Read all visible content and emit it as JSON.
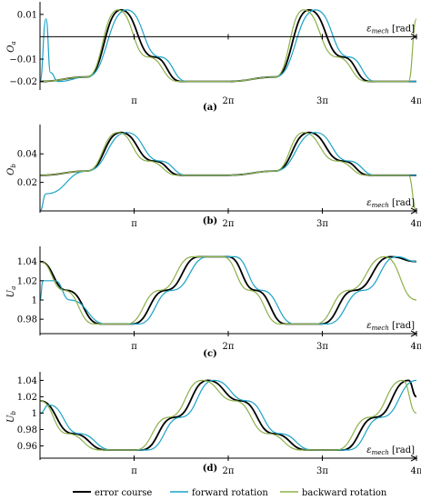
{
  "colors": {
    "error_course": "#000000",
    "forward_rotation": "#1ba3c6",
    "backward_rotation": "#8db04a"
  },
  "legend": {
    "placement": "bottom",
    "entries": [
      "error course",
      "forward rotation",
      "backward rotation"
    ]
  },
  "chart_data": [
    {
      "type": "line",
      "caption": "(a)",
      "ylabel": "O_a",
      "xlabel": "ε_mech [rad]",
      "xlim": [
        0,
        12.566
      ],
      "ylim": [
        -0.023,
        0.014
      ],
      "x_axis_at": 0,
      "xticks": [
        3.1416,
        6.2832,
        9.4248,
        12.566
      ],
      "xtick_labels": [
        "π",
        "2π",
        "3π",
        "4π"
      ],
      "yticks": [
        0.01,
        -0.01,
        -0.02
      ],
      "ytick_labels": [
        "0.01",
        "−0.01",
        "−0.02"
      ],
      "series": [
        {
          "name": "error course",
          "x": [
            0.0,
            1.571,
            2.7,
            3.8,
            4.7,
            6.2832,
            7.854,
            8.98,
            10.1,
            11.0,
            12.566
          ],
          "y": [
            -0.02,
            -0.018,
            0.012,
            -0.009,
            -0.02,
            -0.02,
            -0.018,
            0.012,
            -0.009,
            -0.02,
            -0.02
          ]
        },
        {
          "name": "forward rotation",
          "x": [
            0.0,
            0.2,
            0.35,
            0.6,
            1.571,
            2.9,
            4.0,
            4.9,
            6.2832,
            7.854,
            9.2,
            10.3,
            11.2,
            12.566
          ],
          "y": [
            -0.02,
            0.008,
            -0.016,
            -0.02,
            -0.018,
            0.012,
            -0.009,
            -0.02,
            -0.02,
            -0.018,
            0.012,
            -0.009,
            -0.02,
            -0.02
          ]
        },
        {
          "name": "backward rotation",
          "x": [
            0.0,
            1.571,
            2.6,
            3.6,
            4.6,
            6.2832,
            7.854,
            8.8,
            9.9,
            10.9,
            12.3,
            12.566
          ],
          "y": [
            -0.02,
            -0.018,
            0.012,
            -0.009,
            -0.02,
            -0.02,
            -0.018,
            0.012,
            -0.009,
            -0.02,
            -0.02,
            0.008
          ]
        }
      ]
    },
    {
      "type": "line",
      "caption": "(b)",
      "ylabel": "O_b",
      "xlabel": "ε_mech [rad]",
      "xlim": [
        0,
        12.566
      ],
      "ylim": [
        0.0,
        0.058
      ],
      "x_axis_at": 0.0,
      "xticks": [
        3.1416,
        6.2832,
        9.4248,
        12.566
      ],
      "xtick_labels": [
        "π",
        "2π",
        "3π",
        "4π"
      ],
      "yticks": [
        0.04,
        0.02
      ],
      "ytick_labels": [
        "0.04",
        "0.02"
      ],
      "series": [
        {
          "name": "error course",
          "x": [
            0.0,
            1.571,
            2.7,
            3.8,
            4.7,
            6.2832,
            7.854,
            8.98,
            10.1,
            11.0,
            12.566
          ],
          "y": [
            0.025,
            0.028,
            0.055,
            0.035,
            0.025,
            0.025,
            0.028,
            0.055,
            0.035,
            0.025,
            0.025
          ]
        },
        {
          "name": "forward rotation",
          "x": [
            0.0,
            0.2,
            1.571,
            2.9,
            4.0,
            4.9,
            6.2832,
            7.854,
            9.2,
            10.3,
            11.2,
            12.566
          ],
          "y": [
            0.0,
            0.012,
            0.028,
            0.055,
            0.035,
            0.025,
            0.025,
            0.028,
            0.055,
            0.035,
            0.025,
            0.025
          ]
        },
        {
          "name": "backward rotation",
          "x": [
            0.0,
            1.571,
            2.6,
            3.6,
            4.6,
            6.2832,
            7.854,
            8.8,
            9.9,
            10.9,
            12.3,
            12.566
          ],
          "y": [
            0.025,
            0.028,
            0.055,
            0.035,
            0.025,
            0.025,
            0.028,
            0.055,
            0.035,
            0.025,
            0.025,
            0.0
          ]
        }
      ]
    },
    {
      "type": "line",
      "caption": "(c)",
      "ylabel": "U_a",
      "xlabel": "ε_mech [rad]",
      "xlim": [
        0,
        12.566
      ],
      "ylim": [
        0.965,
        1.052
      ],
      "x_axis_at": 0.965,
      "xticks": [
        3.1416,
        6.2832,
        9.4248,
        12.566
      ],
      "xtick_labels": [
        "π",
        "2π",
        "3π",
        "4π"
      ],
      "yticks": [
        1.04,
        1.02,
        1.0,
        0.98
      ],
      "ytick_labels": [
        "1.04",
        "1.02",
        "1",
        "0.98"
      ],
      "series": [
        {
          "name": "error course",
          "x": [
            0.0,
            0.9,
            2.0,
            3.1,
            4.2,
            5.3,
            6.2832,
            7.2,
            8.2,
            9.4,
            10.5,
            11.7,
            12.566
          ],
          "y": [
            1.04,
            1.01,
            0.975,
            0.975,
            1.01,
            1.045,
            1.045,
            1.01,
            0.975,
            0.975,
            1.01,
            1.045,
            1.04
          ]
        },
        {
          "name": "forward rotation",
          "x": [
            0.0,
            0.1,
            0.5,
            1.0,
            2.2,
            3.3,
            4.4,
            5.6,
            6.5,
            7.4,
            8.5,
            9.6,
            10.8,
            11.9,
            12.566
          ],
          "y": [
            1.0,
            1.02,
            1.02,
            1.0,
            0.975,
            0.975,
            1.01,
            1.045,
            1.045,
            1.01,
            0.975,
            0.975,
            1.01,
            1.045,
            1.04
          ]
        },
        {
          "name": "backward rotation",
          "x": [
            0.0,
            0.8,
            1.8,
            2.9,
            4.0,
            5.1,
            6.1,
            7.0,
            8.0,
            9.2,
            10.3,
            11.5,
            12.566
          ],
          "y": [
            1.04,
            1.01,
            0.975,
            0.975,
            1.01,
            1.045,
            1.045,
            1.01,
            0.975,
            0.975,
            1.01,
            1.045,
            1.0
          ]
        }
      ]
    },
    {
      "type": "line",
      "caption": "(d)",
      "ylabel": "U_b",
      "xlabel": "ε_mech [rad]",
      "xlim": [
        0,
        12.566
      ],
      "ylim": [
        0.945,
        1.046
      ],
      "x_axis_at": 0.945,
      "xticks": [
        3.1416,
        6.2832,
        9.4248,
        12.566
      ],
      "xtick_labels": [
        "π",
        "2π",
        "3π",
        "4π"
      ],
      "yticks": [
        1.04,
        1.02,
        1.0,
        0.98,
        0.96
      ],
      "ytick_labels": [
        "1.04",
        "1.02",
        "1",
        "0.98",
        "0.96"
      ],
      "series": [
        {
          "name": "error course",
          "x": [
            0.0,
            1.1,
            2.2,
            3.4,
            4.5,
            5.6,
            6.7,
            7.8,
            8.9,
            10.1,
            11.2,
            12.3,
            12.566
          ],
          "y": [
            1.015,
            0.975,
            0.955,
            0.955,
            0.995,
            1.04,
            1.015,
            0.975,
            0.955,
            0.955,
            0.995,
            1.04,
            1.02
          ]
        },
        {
          "name": "forward rotation",
          "x": [
            0.0,
            0.3,
            1.3,
            2.4,
            3.6,
            4.7,
            5.8,
            6.9,
            8.0,
            9.1,
            10.3,
            11.4,
            12.566
          ],
          "y": [
            1.0,
            1.01,
            0.975,
            0.955,
            0.955,
            0.995,
            1.04,
            1.015,
            0.975,
            0.955,
            0.955,
            0.995,
            1.04
          ]
        },
        {
          "name": "backward rotation",
          "x": [
            0.0,
            0.9,
            2.0,
            3.2,
            4.3,
            5.4,
            6.5,
            7.6,
            8.7,
            9.9,
            11.0,
            12.1,
            12.566
          ],
          "y": [
            1.015,
            0.975,
            0.955,
            0.955,
            0.995,
            1.04,
            1.015,
            0.975,
            0.955,
            0.955,
            0.995,
            1.04,
            1.0
          ]
        }
      ]
    }
  ]
}
